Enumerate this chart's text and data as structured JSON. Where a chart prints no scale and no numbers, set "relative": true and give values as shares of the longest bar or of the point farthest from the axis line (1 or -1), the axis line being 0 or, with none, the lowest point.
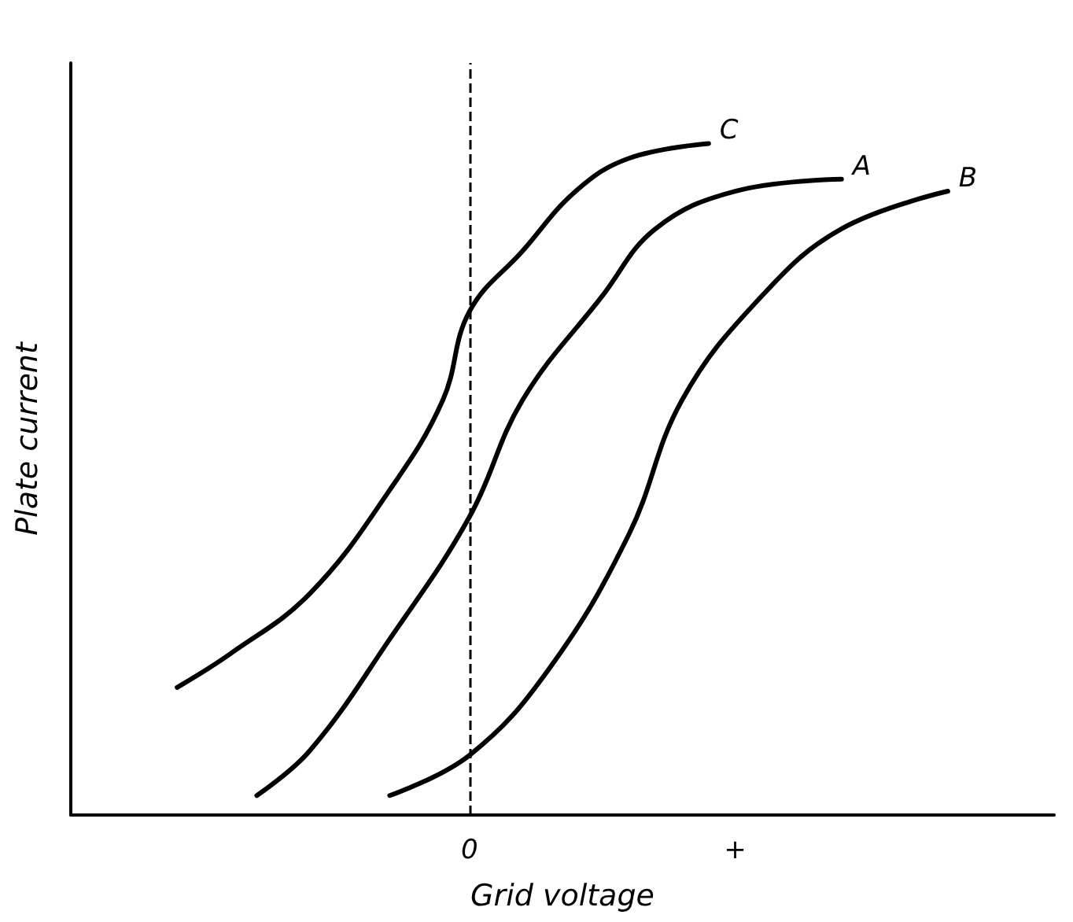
{
  "chart_data": {
    "type": "line",
    "relative": true,
    "xlabel": "Grid voltage",
    "ylabel": "Plate current",
    "categories": [
      null,
      null,
      null,
      null,
      null,
      null,
      null,
      null,
      null,
      null,
      null,
      null,
      null,
      null,
      null,
      "0",
      null,
      null,
      null,
      null,
      null,
      null,
      null,
      null,
      null,
      "+",
      null,
      null,
      null,
      null,
      null,
      null,
      null,
      null,
      null,
      null,
      null,
      null
    ],
    "grid": false,
    "legend": false,
    "marker": "none",
    "line_style": "solid",
    "ref_lines": [
      {
        "axis": "x",
        "value": "0",
        "label": null,
        "color": "#000000",
        "line_style": "dashed"
      }
    ],
    "series": [
      {
        "name": "C",
        "color": "#000000",
        "values": [
          null,
          null,
          null,
          null,
          0.19,
          null,
          0.24,
          null,
          null,
          0.33,
          null,
          null,
          0.484,
          null,
          0.618,
          0.75,
          null,
          0.84,
          null,
          0.929,
          null,
          0.978,
          null,
          null,
          1,
          null,
          null,
          null,
          null,
          null,
          null,
          null,
          null,
          null,
          null,
          null,
          null,
          null
        ]
      },
      {
        "name": "A",
        "color": "#000000",
        "values": [
          null,
          null,
          null,
          null,
          null,
          null,
          null,
          0.029,
          null,
          0.096,
          null,
          null,
          0.262,
          null,
          null,
          0.444,
          null,
          0.618,
          null,
          null,
          0.773,
          null,
          0.873,
          null,
          null,
          0.929,
          null,
          null,
          null,
          0.947,
          null,
          null,
          null,
          null,
          null,
          null,
          null,
          null
        ]
      },
      {
        "name": "B",
        "color": "#000000",
        "values": [
          null,
          null,
          null,
          null,
          null,
          null,
          null,
          null,
          null,
          null,
          null,
          null,
          0.029,
          null,
          null,
          0.089,
          null,
          null,
          0.218,
          null,
          null,
          0.418,
          null,
          0.618,
          null,
          null,
          0.773,
          null,
          null,
          0.873,
          null,
          null,
          null,
          0.929,
          null,
          null,
          null,
          null
        ]
      }
    ]
  }
}
